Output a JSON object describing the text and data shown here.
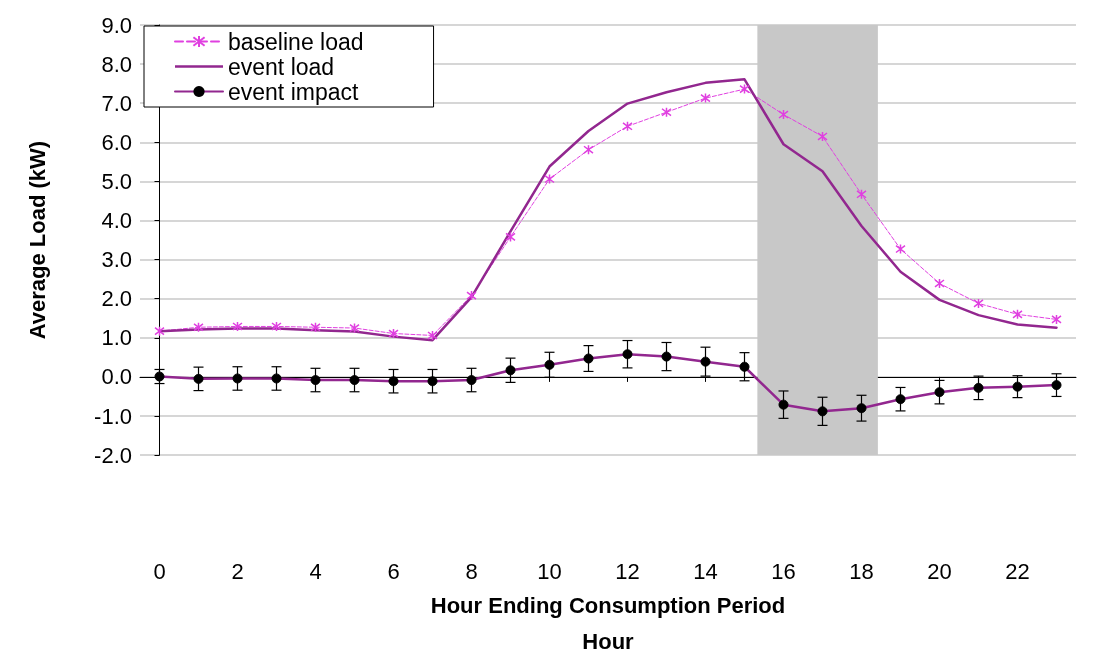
{
  "chart_data": {
    "type": "line",
    "xlabel": "Hour Ending Consumption Period\nHour",
    "ylabel": "Average Load (kW)",
    "x": [
      0,
      1,
      2,
      3,
      4,
      5,
      6,
      7,
      8,
      9,
      10,
      11,
      12,
      13,
      14,
      15,
      16,
      17,
      18,
      19,
      20,
      21,
      22,
      23
    ],
    "xlim": [
      -0.5,
      23.5
    ],
    "xticks": [
      0,
      2,
      4,
      6,
      8,
      10,
      12,
      14,
      16,
      18,
      20,
      22
    ],
    "ylim": [
      -2,
      9
    ],
    "yticks": [
      {
        "value": -2,
        "label": "-2.0"
      },
      {
        "value": -1,
        "label": "-1.0"
      },
      {
        "value": 0,
        "label": "0.0"
      },
      {
        "value": 1,
        "label": "1.0"
      },
      {
        "value": 2,
        "label": "2.0"
      },
      {
        "value": 3,
        "label": "3.0"
      },
      {
        "value": 4,
        "label": "4.0"
      },
      {
        "value": 5,
        "label": "5.0"
      },
      {
        "value": 6,
        "label": "6.0"
      },
      {
        "value": 7,
        "label": "7.0"
      },
      {
        "value": 8,
        "label": "8.0"
      },
      {
        "value": 9,
        "label": "9.0"
      }
    ],
    "grid": "y",
    "legend": "top left",
    "series": [
      {
        "name": "baseline load",
        "color": "#e040e0",
        "marker": "cross",
        "line_style": "dashed",
        "values": [
          1.17,
          1.27,
          1.29,
          1.29,
          1.27,
          1.25,
          1.11,
          1.06,
          2.08,
          3.58,
          5.06,
          5.81,
          6.41,
          6.77,
          7.13,
          7.36,
          6.71,
          6.15,
          4.67,
          3.27,
          2.39,
          1.88,
          1.6,
          1.47
        ]
      },
      {
        "name": "event load",
        "color": "#92278f",
        "marker": "none",
        "line_style": "solid",
        "values": [
          1.17,
          1.21,
          1.24,
          1.24,
          1.19,
          1.16,
          1.03,
          0.94,
          2.04,
          3.72,
          5.38,
          6.29,
          6.99,
          7.28,
          7.52,
          7.61,
          5.95,
          5.26,
          3.86,
          2.69,
          1.97,
          1.58,
          1.34,
          1.26
        ]
      },
      {
        "name": "event impact",
        "color": "#92278f",
        "marker": "circle",
        "line_style": "solid",
        "values": [
          0.01,
          -0.05,
          -0.04,
          -0.04,
          -0.08,
          -0.08,
          -0.11,
          -0.11,
          -0.08,
          0.17,
          0.31,
          0.47,
          0.58,
          0.52,
          0.39,
          0.26,
          -0.71,
          -0.88,
          -0.8,
          -0.57,
          -0.39,
          -0.28,
          -0.25,
          -0.21
        ],
        "errors": [
          0.18,
          0.3,
          0.3,
          0.3,
          0.3,
          0.3,
          0.3,
          0.3,
          0.3,
          0.31,
          0.32,
          0.33,
          0.35,
          0.36,
          0.37,
          0.36,
          0.35,
          0.36,
          0.33,
          0.3,
          0.3,
          0.3,
          0.28,
          0.29
        ]
      }
    ],
    "bands": [
      {
        "axis": "x",
        "from": 15.33,
        "to": 18.42,
        "color": "#c8c8c8"
      }
    ]
  }
}
